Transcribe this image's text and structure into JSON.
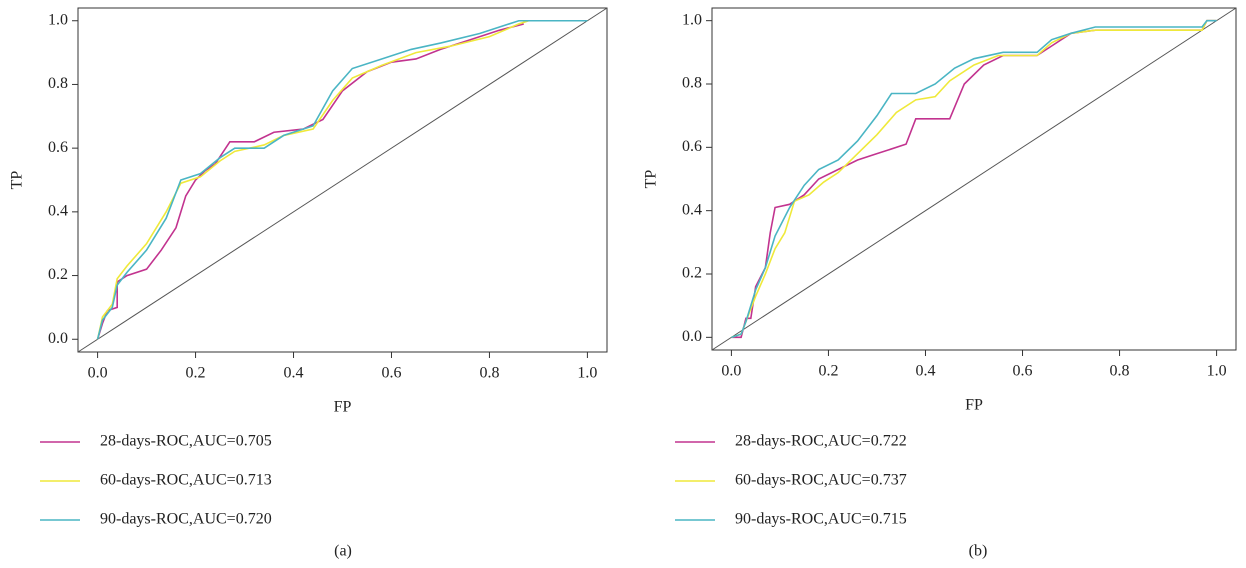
{
  "chart_data": [
    {
      "type": "line",
      "x_label": "FP",
      "y_label": "TP",
      "panel_label": "(a)",
      "xlim": [
        -0.04,
        1.04
      ],
      "ylim": [
        -0.04,
        1.04
      ],
      "xticks": [
        {
          "value": 0,
          "label": "0.0"
        },
        0.2,
        0.4,
        0.6,
        0.8,
        {
          "value": 1,
          "label": "1.0"
        }
      ],
      "yticks": [
        {
          "value": 0,
          "label": "0.0"
        },
        0.2,
        0.4,
        0.6,
        0.8,
        {
          "value": 1,
          "label": "1.0"
        }
      ],
      "series": [
        {
          "name": "28-days-ROC,AUC=0.705",
          "color": "#c2338f",
          "x": [
            0,
            0.01,
            0.02,
            0.04,
            0.04,
            0.06,
            0.1,
            0.13,
            0.16,
            0.18,
            0.2,
            0.22,
            0.24,
            0.27,
            0.32,
            0.36,
            0.42,
            0.46,
            0.5,
            0.55,
            0.6,
            0.65,
            0.7,
            0.76,
            0.82,
            0.87
          ],
          "values": [
            0,
            0.05,
            0.09,
            0.1,
            0.18,
            0.2,
            0.22,
            0.28,
            0.35,
            0.45,
            0.5,
            0.53,
            0.55,
            0.62,
            0.62,
            0.65,
            0.66,
            0.69,
            0.78,
            0.84,
            0.87,
            0.88,
            0.91,
            0.94,
            0.97,
            0.99
          ]
        },
        {
          "name": "60-days-ROC,AUC=0.713",
          "color": "#efe93a",
          "x": [
            0,
            0.01,
            0.03,
            0.04,
            0.06,
            0.1,
            0.14,
            0.17,
            0.21,
            0.25,
            0.28,
            0.34,
            0.38,
            0.44,
            0.48,
            0.52,
            0.58,
            0.65,
            0.72,
            0.8,
            0.86,
            0.88,
            1.0
          ],
          "values": [
            0,
            0.07,
            0.11,
            0.19,
            0.23,
            0.3,
            0.4,
            0.49,
            0.51,
            0.56,
            0.59,
            0.61,
            0.64,
            0.66,
            0.75,
            0.82,
            0.86,
            0.9,
            0.92,
            0.95,
            0.99,
            1.0,
            1.0
          ]
        },
        {
          "name": "90-days-ROC,AUC=0.720",
          "color": "#4ab5c4",
          "x": [
            0,
            0.01,
            0.03,
            0.04,
            0.06,
            0.1,
            0.14,
            0.17,
            0.21,
            0.25,
            0.28,
            0.34,
            0.38,
            0.44,
            0.48,
            0.52,
            0.58,
            0.64,
            0.7,
            0.78,
            0.84,
            0.86,
            1.0
          ],
          "values": [
            0,
            0.06,
            0.1,
            0.17,
            0.21,
            0.28,
            0.38,
            0.5,
            0.52,
            0.57,
            0.6,
            0.6,
            0.64,
            0.67,
            0.78,
            0.85,
            0.88,
            0.91,
            0.93,
            0.96,
            0.99,
            1.0,
            1.0
          ]
        }
      ]
    },
    {
      "type": "line",
      "x_label": "FP",
      "y_label": "TP",
      "panel_label": "(b)",
      "xlim": [
        -0.04,
        1.04
      ],
      "ylim": [
        -0.04,
        1.04
      ],
      "xticks": [
        {
          "value": 0,
          "label": "0.0"
        },
        0.2,
        0.4,
        0.6,
        0.8,
        {
          "value": 1,
          "label": "1.0"
        }
      ],
      "yticks": [
        {
          "value": 0,
          "label": "0.0"
        },
        0.2,
        0.4,
        0.6,
        0.8,
        {
          "value": 1,
          "label": "1.0"
        }
      ],
      "series": [
        {
          "name": "28-days-ROC,AUC=0.722",
          "color": "#c2338f",
          "x": [
            0,
            0.02,
            0.03,
            0.04,
            0.05,
            0.07,
            0.08,
            0.09,
            0.12,
            0.15,
            0.18,
            0.22,
            0.26,
            0.3,
            0.36,
            0.38,
            0.45,
            0.48,
            0.52,
            0.56,
            0.63,
            0.66,
            0.7,
            0.75,
            0.97,
            0.98,
            1.0
          ],
          "values": [
            0,
            0,
            0.06,
            0.06,
            0.16,
            0.22,
            0.33,
            0.41,
            0.42,
            0.45,
            0.5,
            0.53,
            0.56,
            0.58,
            0.61,
            0.69,
            0.69,
            0.8,
            0.86,
            0.89,
            0.89,
            0.92,
            0.96,
            0.97,
            0.97,
            1.0,
            1.0
          ]
        },
        {
          "name": "60-days-ROC,AUC=0.737",
          "color": "#efe93a",
          "x": [
            0,
            0.02,
            0.03,
            0.05,
            0.07,
            0.09,
            0.11,
            0.13,
            0.16,
            0.19,
            0.22,
            0.26,
            0.3,
            0.34,
            0.38,
            0.42,
            0.45,
            0.5,
            0.55,
            0.63,
            0.66,
            0.7,
            0.75,
            0.97,
            0.98,
            1.0
          ],
          "values": [
            0,
            0.01,
            0.05,
            0.13,
            0.2,
            0.28,
            0.33,
            0.43,
            0.45,
            0.49,
            0.52,
            0.58,
            0.64,
            0.71,
            0.75,
            0.76,
            0.81,
            0.86,
            0.89,
            0.89,
            0.93,
            0.96,
            0.97,
            0.97,
            1.0,
            1.0
          ]
        },
        {
          "name": "90-days-ROC,AUC=0.715",
          "color": "#4ab5c4",
          "x": [
            0,
            0.02,
            0.03,
            0.05,
            0.07,
            0.09,
            0.12,
            0.15,
            0.18,
            0.22,
            0.26,
            0.3,
            0.33,
            0.38,
            0.42,
            0.46,
            0.5,
            0.56,
            0.63,
            0.66,
            0.7,
            0.75,
            0.97,
            0.98,
            1.0
          ],
          "values": [
            0,
            0.01,
            0.05,
            0.15,
            0.22,
            0.32,
            0.41,
            0.48,
            0.53,
            0.56,
            0.62,
            0.7,
            0.77,
            0.77,
            0.8,
            0.85,
            0.88,
            0.9,
            0.9,
            0.94,
            0.96,
            0.98,
            0.98,
            1.0,
            1.0
          ]
        }
      ]
    }
  ]
}
